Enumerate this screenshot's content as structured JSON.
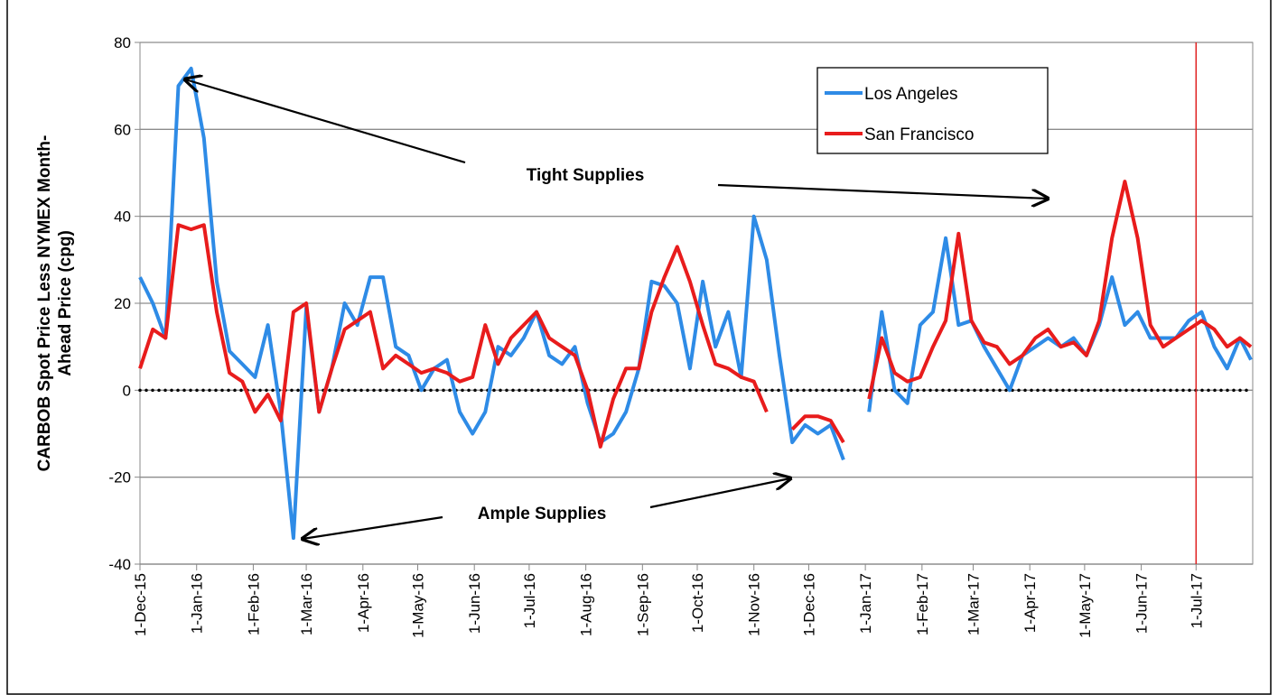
{
  "chart_data": {
    "type": "line",
    "ylabel": [
      "CARBOB Spot Price Less NYMEX Month-",
      "Ahead Price (cpg)"
    ],
    "annotations": [
      "Tight Supplies",
      "Ample Supplies"
    ],
    "ylim": [
      -40,
      80
    ],
    "yticks": [
      -40,
      -20,
      0,
      20,
      40,
      60,
      80
    ],
    "grid": true,
    "reference_line": 0,
    "xlim": [
      "2015-12-01",
      "2017-08-01"
    ],
    "xticks": [
      {
        "value": "2015-12-01",
        "label": "1-Dec-15"
      },
      {
        "value": "2016-01-01",
        "label": "1-Jan-16"
      },
      {
        "value": "2016-02-01",
        "label": "1-Feb-16"
      },
      {
        "value": "2016-03-01",
        "label": "1-Mar-16"
      },
      {
        "value": "2016-04-01",
        "label": "1-Apr-16"
      },
      {
        "value": "2016-05-01",
        "label": "1-May-16"
      },
      {
        "value": "2016-06-01",
        "label": "1-Jun-16"
      },
      {
        "value": "2016-07-01",
        "label": "1-Jul-16"
      },
      {
        "value": "2016-08-01",
        "label": "1-Aug-16"
      },
      {
        "value": "2016-09-01",
        "label": "1-Sep-16"
      },
      {
        "value": "2016-10-01",
        "label": "1-Oct-16"
      },
      {
        "value": "2016-11-01",
        "label": "1-Nov-16"
      },
      {
        "value": "2016-12-01",
        "label": "1-Dec-16"
      },
      {
        "value": "2017-01-01",
        "label": "1-Jan-17"
      },
      {
        "value": "2017-02-01",
        "label": "1-Feb-17"
      },
      {
        "value": "2017-03-01",
        "label": "1-Mar-17"
      },
      {
        "value": "2017-04-01",
        "label": "1-Apr-17"
      },
      {
        "value": "2017-05-01",
        "label": "1-May-17"
      },
      {
        "value": "2017-06-01",
        "label": "1-Jun-17"
      },
      {
        "value": "2017-07-01",
        "label": "1-Jul-17"
      }
    ],
    "vline": {
      "x": "2017-07-01",
      "color": "#e02020"
    },
    "legend": "upper right",
    "x": [
      "2015-12-01",
      "2015-12-08",
      "2015-12-15",
      "2015-12-22",
      "2015-12-29",
      "2016-01-05",
      "2016-01-12",
      "2016-01-19",
      "2016-01-26",
      "2016-02-02",
      "2016-02-09",
      "2016-02-16",
      "2016-02-23",
      "2016-03-01",
      "2016-03-08",
      "2016-03-15",
      "2016-03-22",
      "2016-03-29",
      "2016-04-05",
      "2016-04-12",
      "2016-04-19",
      "2016-04-26",
      "2016-05-03",
      "2016-05-10",
      "2016-05-17",
      "2016-05-24",
      "2016-05-31",
      "2016-06-07",
      "2016-06-14",
      "2016-06-21",
      "2016-06-28",
      "2016-07-05",
      "2016-07-12",
      "2016-07-19",
      "2016-07-26",
      "2016-08-02",
      "2016-08-09",
      "2016-08-16",
      "2016-08-23",
      "2016-08-30",
      "2016-09-06",
      "2016-09-13",
      "2016-09-20",
      "2016-09-27",
      "2016-10-04",
      "2016-10-11",
      "2016-10-18",
      "2016-10-25",
      "2016-11-01",
      "2016-11-08",
      "2016-11-15",
      "2016-11-22",
      "2016-11-29",
      "2016-12-06",
      "2016-12-13",
      "2016-12-20",
      "2016-12-27",
      "2017-01-03",
      "2017-01-10",
      "2017-01-17",
      "2017-01-24",
      "2017-01-31",
      "2017-02-07",
      "2017-02-14",
      "2017-02-21",
      "2017-02-28",
      "2017-03-07",
      "2017-03-14",
      "2017-03-21",
      "2017-03-28",
      "2017-04-04",
      "2017-04-11",
      "2017-04-18",
      "2017-04-25",
      "2017-05-02",
      "2017-05-09",
      "2017-05-16",
      "2017-05-23",
      "2017-05-30",
      "2017-06-06",
      "2017-06-13",
      "2017-06-20",
      "2017-06-27",
      "2017-07-04",
      "2017-07-11",
      "2017-07-18",
      "2017-07-25",
      "2017-07-31"
    ],
    "series": [
      {
        "name": "Los Angeles",
        "color": "#2e8be6",
        "values": [
          26,
          20,
          12,
          70,
          74,
          58,
          25,
          9,
          6,
          3,
          15,
          -5,
          -34,
          19,
          -5,
          5,
          20,
          15,
          26,
          26,
          10,
          8,
          0,
          5,
          7,
          -5,
          -10,
          -5,
          10,
          8,
          12,
          18,
          8,
          6,
          10,
          -3,
          -12,
          -10,
          -5,
          5,
          25,
          24,
          20,
          5,
          25,
          10,
          18,
          3,
          40,
          30,
          8,
          -12,
          -8,
          -10,
          -8,
          -16,
          null,
          -5,
          18,
          0,
          -3,
          15,
          18,
          35,
          15,
          16,
          10,
          5,
          0,
          8,
          10,
          12,
          10,
          12,
          8,
          15,
          26,
          15,
          18,
          12,
          12,
          12,
          16,
          18,
          10,
          5,
          12,
          7
        ]
      },
      {
        "name": "San Francisco",
        "color": "#e81c1c",
        "values": [
          5,
          14,
          12,
          38,
          37,
          38,
          18,
          4,
          2,
          -5,
          -1,
          -7,
          18,
          20,
          -5,
          5,
          14,
          16,
          18,
          5,
          8,
          6,
          4,
          5,
          4,
          2,
          3,
          15,
          6,
          12,
          15,
          18,
          12,
          10,
          8,
          0,
          -13,
          -2,
          5,
          5,
          18,
          26,
          33,
          25,
          15,
          6,
          5,
          3,
          2,
          -5,
          null,
          -9,
          -6,
          -6,
          -7,
          -12,
          null,
          -2,
          12,
          4,
          2,
          3,
          10,
          16,
          36,
          16,
          11,
          10,
          6,
          8,
          12,
          14,
          10,
          11,
          8,
          16,
          35,
          48,
          35,
          15,
          10,
          12,
          14,
          16,
          14,
          10,
          12,
          10
        ]
      }
    ]
  }
}
